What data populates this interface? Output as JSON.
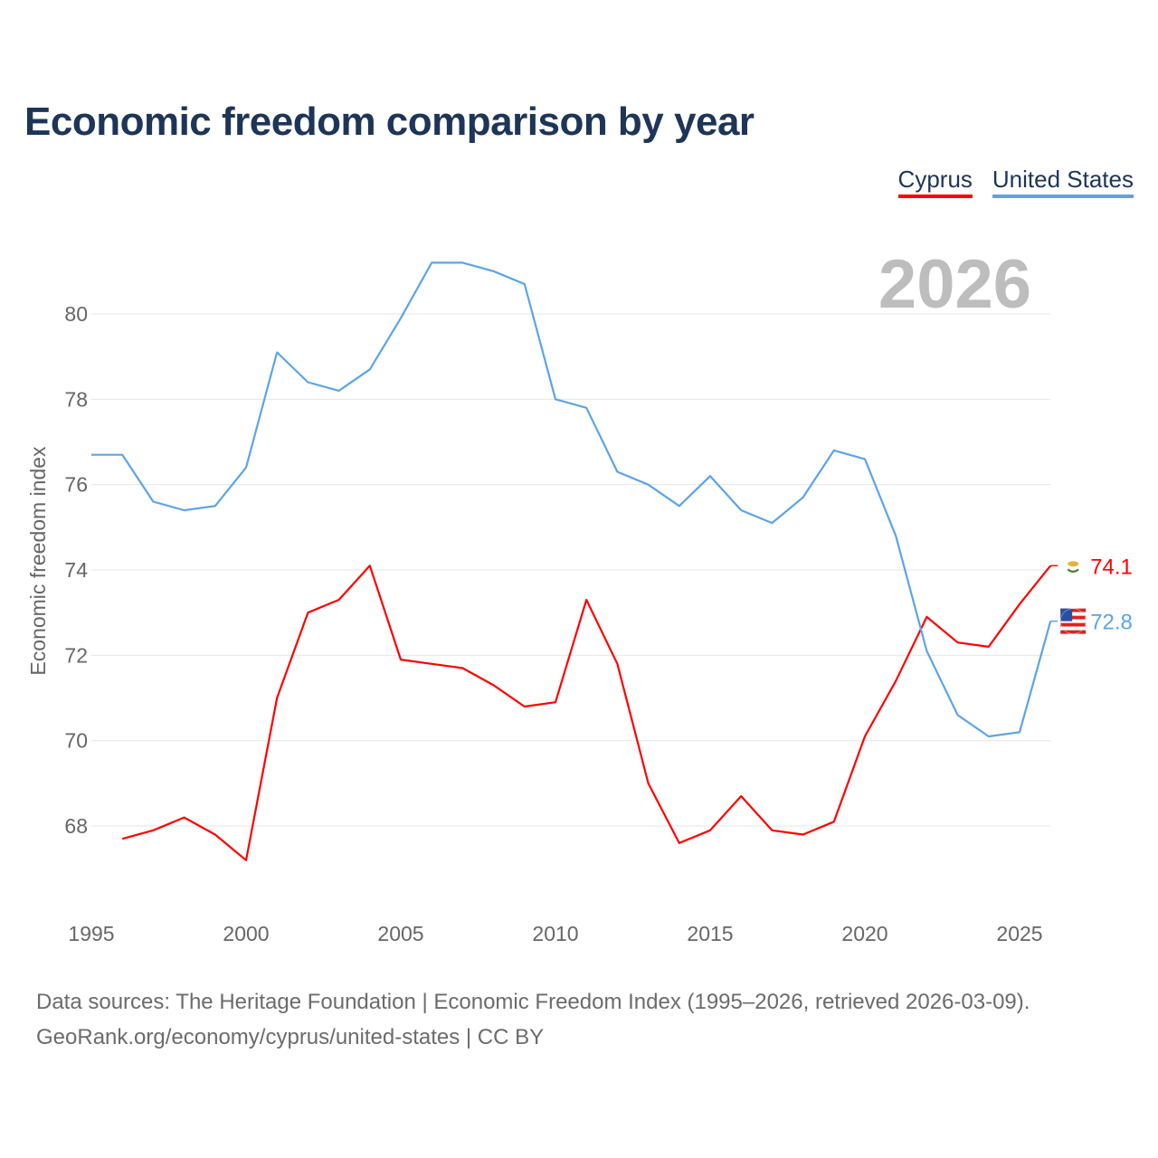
{
  "title": "Economic freedom comparison by year",
  "source_line1": "Data sources: The Heritage Foundation | Economic Freedom Index (1995–2026, retrieved 2026-03-09).",
  "source_line2": "GeoRank.org/economy/cyprus/united-states | CC BY",
  "chart_data": {
    "type": "line",
    "title": "Economic freedom comparison by year",
    "xlabel": "",
    "ylabel": "Economic freedom index",
    "year_label": "2026",
    "xlim": [
      1995,
      2026
    ],
    "ylim": [
      66.5,
      81.5
    ],
    "x_ticks": [
      1995,
      2000,
      2005,
      2010,
      2015,
      2020,
      2025
    ],
    "y_ticks": [
      68,
      70,
      72,
      74,
      76,
      78,
      80
    ],
    "grid": true,
    "legend_position": "top-right",
    "series": [
      {
        "name": "Cyprus",
        "color": "#ff0000",
        "end_label": "74.1",
        "flag": "cyprus-flag",
        "x": [
          1996,
          1997,
          1998,
          1999,
          2000,
          2001,
          2002,
          2003,
          2004,
          2005,
          2006,
          2007,
          2008,
          2009,
          2010,
          2011,
          2012,
          2013,
          2014,
          2015,
          2016,
          2017,
          2018,
          2019,
          2020,
          2021,
          2022,
          2023,
          2024,
          2025,
          2026
        ],
        "values": [
          67.7,
          67.9,
          68.2,
          67.8,
          67.2,
          71.0,
          73.0,
          73.3,
          74.1,
          71.9,
          71.8,
          71.7,
          71.3,
          70.8,
          70.9,
          73.3,
          71.8,
          69.0,
          67.6,
          67.9,
          68.7,
          67.9,
          67.8,
          68.1,
          70.1,
          71.4,
          72.9,
          72.3,
          72.2,
          73.2,
          74.1
        ]
      },
      {
        "name": "United States",
        "color": "#5ba4e8",
        "end_label": "72.8",
        "flag": "us-flag",
        "x": [
          1995,
          1996,
          1997,
          1998,
          1999,
          2000,
          2001,
          2002,
          2003,
          2004,
          2005,
          2006,
          2007,
          2008,
          2009,
          2010,
          2011,
          2012,
          2013,
          2014,
          2015,
          2016,
          2017,
          2018,
          2019,
          2020,
          2021,
          2022,
          2023,
          2024,
          2025,
          2026
        ],
        "values": [
          76.7,
          76.7,
          75.6,
          75.4,
          75.5,
          76.4,
          79.1,
          78.4,
          78.2,
          78.7,
          79.9,
          81.2,
          81.2,
          81.0,
          80.7,
          78.0,
          77.8,
          76.3,
          76.0,
          75.5,
          76.2,
          75.4,
          75.1,
          75.7,
          76.8,
          76.6,
          74.8,
          72.1,
          70.6,
          70.1,
          70.2,
          72.8
        ]
      }
    ]
  }
}
